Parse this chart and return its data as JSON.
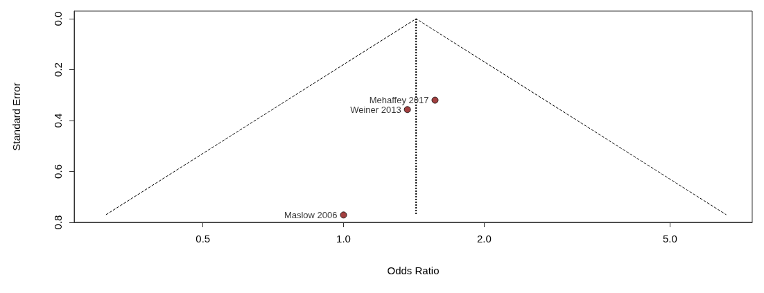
{
  "chart_data": {
    "type": "scatter",
    "xlabel": "Odds Ratio",
    "ylabel": "Standard Error",
    "log": "x",
    "xlim": [
      0.265,
      7.5
    ],
    "xticks": [
      {
        "value": 0.5,
        "label": "0.5"
      },
      {
        "value": 1,
        "label": "1.0"
      },
      {
        "value": 2,
        "label": "2.0"
      },
      {
        "value": 5,
        "label": "5.0"
      }
    ],
    "ylim": [
      0.8,
      -0.03
    ],
    "yticks": [
      {
        "value": 0,
        "label": "0.0"
      },
      {
        "value": 0.2,
        "label": "0.2"
      },
      {
        "value": 0.4,
        "label": "0.4"
      },
      {
        "value": 0.6,
        "label": "0.6"
      },
      {
        "value": 0.8,
        "label": "0.8"
      }
    ],
    "grid": false,
    "series": [
      {
        "type": "line",
        "color": "#000000",
        "line_style": "dashed",
        "marker": "none",
        "x": [
          0.31,
          1.43,
          6.6
        ],
        "values": [
          0.77,
          0,
          0.77
        ]
      },
      {
        "type": "line",
        "color": "#000000",
        "line_style": "dotted",
        "marker": "none",
        "x": [
          1.43,
          1.43
        ],
        "values": [
          0,
          0.77
        ]
      },
      {
        "color": "#8b1010",
        "marker": "circle",
        "x": [
          1.57,
          1.37,
          1.0
        ],
        "values": [
          0.32,
          0.357,
          0.771
        ]
      }
    ],
    "annotations": [
      {
        "text": "Mehaffey 2017",
        "x": 1.57,
        "y": 0.32
      },
      {
        "text": "Weiner 2013",
        "x": 1.37,
        "y": 0.357
      },
      {
        "text": "Maslow 2006",
        "x": 1.0,
        "y": 0.771
      }
    ]
  }
}
